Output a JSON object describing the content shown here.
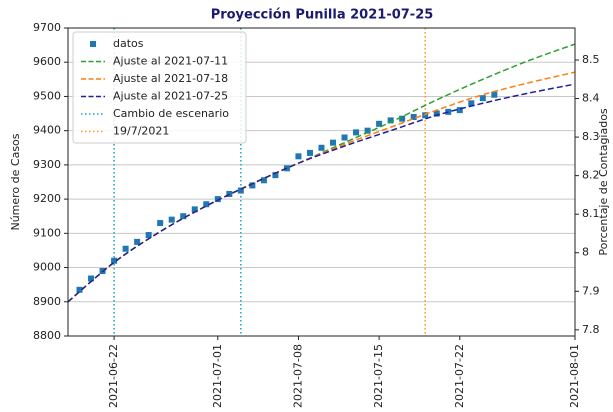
{
  "chart_data": {
    "type": "line",
    "title": "Proyección Punilla 2021-07-25",
    "ylabel": "Número de Casos",
    "y2label": "Porcentaje de Contagiados",
    "xlim": [
      "2021-06-18",
      "2021-08-01"
    ],
    "xticks": [
      "2021-06-22",
      "2021-07-01",
      "2021-07-08",
      "2021-07-15",
      "2021-07-22",
      "2021-08-01"
    ],
    "ylim": [
      8800,
      9700
    ],
    "yticks": [
      8800,
      8900,
      9000,
      9100,
      9200,
      9300,
      9400,
      9500,
      9600,
      9700
    ],
    "y2lim": [
      7.784,
      8.583
    ],
    "y2ticks": [
      7.8,
      7.9,
      8.0,
      8.1,
      8.2,
      8.3,
      8.4,
      8.5
    ],
    "grid": true,
    "legend": "upper left",
    "series": [
      {
        "name": "datos",
        "kind": "scatter",
        "color": "#1f77b4",
        "x": [
          "2021-06-19",
          "2021-06-20",
          "2021-06-21",
          "2021-06-22",
          "2021-06-23",
          "2021-06-24",
          "2021-06-25",
          "2021-06-26",
          "2021-06-27",
          "2021-06-28",
          "2021-06-29",
          "2021-06-30",
          "2021-07-01",
          "2021-07-02",
          "2021-07-03",
          "2021-07-04",
          "2021-07-05",
          "2021-07-06",
          "2021-07-07",
          "2021-07-08",
          "2021-07-09",
          "2021-07-10",
          "2021-07-11",
          "2021-07-12",
          "2021-07-13",
          "2021-07-14",
          "2021-07-15",
          "2021-07-16",
          "2021-07-17",
          "2021-07-18",
          "2021-07-19",
          "2021-07-20",
          "2021-07-21",
          "2021-07-22",
          "2021-07-23",
          "2021-07-24",
          "2021-07-25"
        ],
        "values": [
          8935,
          8968,
          8990,
          9020,
          9055,
          9075,
          9095,
          9130,
          9140,
          9150,
          9170,
          9185,
          9200,
          9215,
          9225,
          9240,
          9255,
          9270,
          9290,
          9325,
          9335,
          9350,
          9365,
          9380,
          9395,
          9400,
          9420,
          9430,
          9435,
          9440,
          9445,
          9450,
          9455,
          9460,
          9480,
          9495,
          9505
        ]
      },
      {
        "name": "Ajuste al 2021-07-11",
        "kind": "line",
        "color": "#2ca02c",
        "x": [
          "2021-06-18",
          "2021-06-22",
          "2021-06-26",
          "2021-06-30",
          "2021-07-04",
          "2021-07-08",
          "2021-07-12",
          "2021-07-16",
          "2021-07-20",
          "2021-07-24",
          "2021-07-28",
          "2021-08-01"
        ],
        "values": [
          8900,
          9015,
          9105,
          9180,
          9245,
          9305,
          9365,
          9425,
          9490,
          9550,
          9605,
          9653
        ]
      },
      {
        "name": "Ajuste al 2021-07-18",
        "kind": "line",
        "color": "#ff7f0e",
        "x": [
          "2021-06-18",
          "2021-06-22",
          "2021-06-26",
          "2021-06-30",
          "2021-07-04",
          "2021-07-08",
          "2021-07-12",
          "2021-07-16",
          "2021-07-20",
          "2021-07-24",
          "2021-07-28",
          "2021-08-01"
        ],
        "values": [
          8900,
          9015,
          9105,
          9180,
          9245,
          9305,
          9360,
          9410,
          9460,
          9505,
          9540,
          9571
        ]
      },
      {
        "name": "Ajuste al 2021-07-25",
        "kind": "line",
        "color": "#1f1f9a",
        "x": [
          "2021-06-18",
          "2021-06-22",
          "2021-06-26",
          "2021-06-30",
          "2021-07-04",
          "2021-07-08",
          "2021-07-12",
          "2021-07-16",
          "2021-07-20",
          "2021-07-24",
          "2021-07-28",
          "2021-08-01"
        ],
        "values": [
          8900,
          9015,
          9105,
          9180,
          9245,
          9305,
          9355,
          9400,
          9445,
          9480,
          9510,
          9536
        ]
      }
    ],
    "vlines": [
      {
        "name": "Cambio de escenario",
        "color": "#17a2c4",
        "x": [
          "2021-06-22",
          "2021-07-03"
        ]
      },
      {
        "name": "19/7/2021",
        "color": "#ff9a1a",
        "x": [
          "2021-07-19"
        ]
      }
    ]
  }
}
